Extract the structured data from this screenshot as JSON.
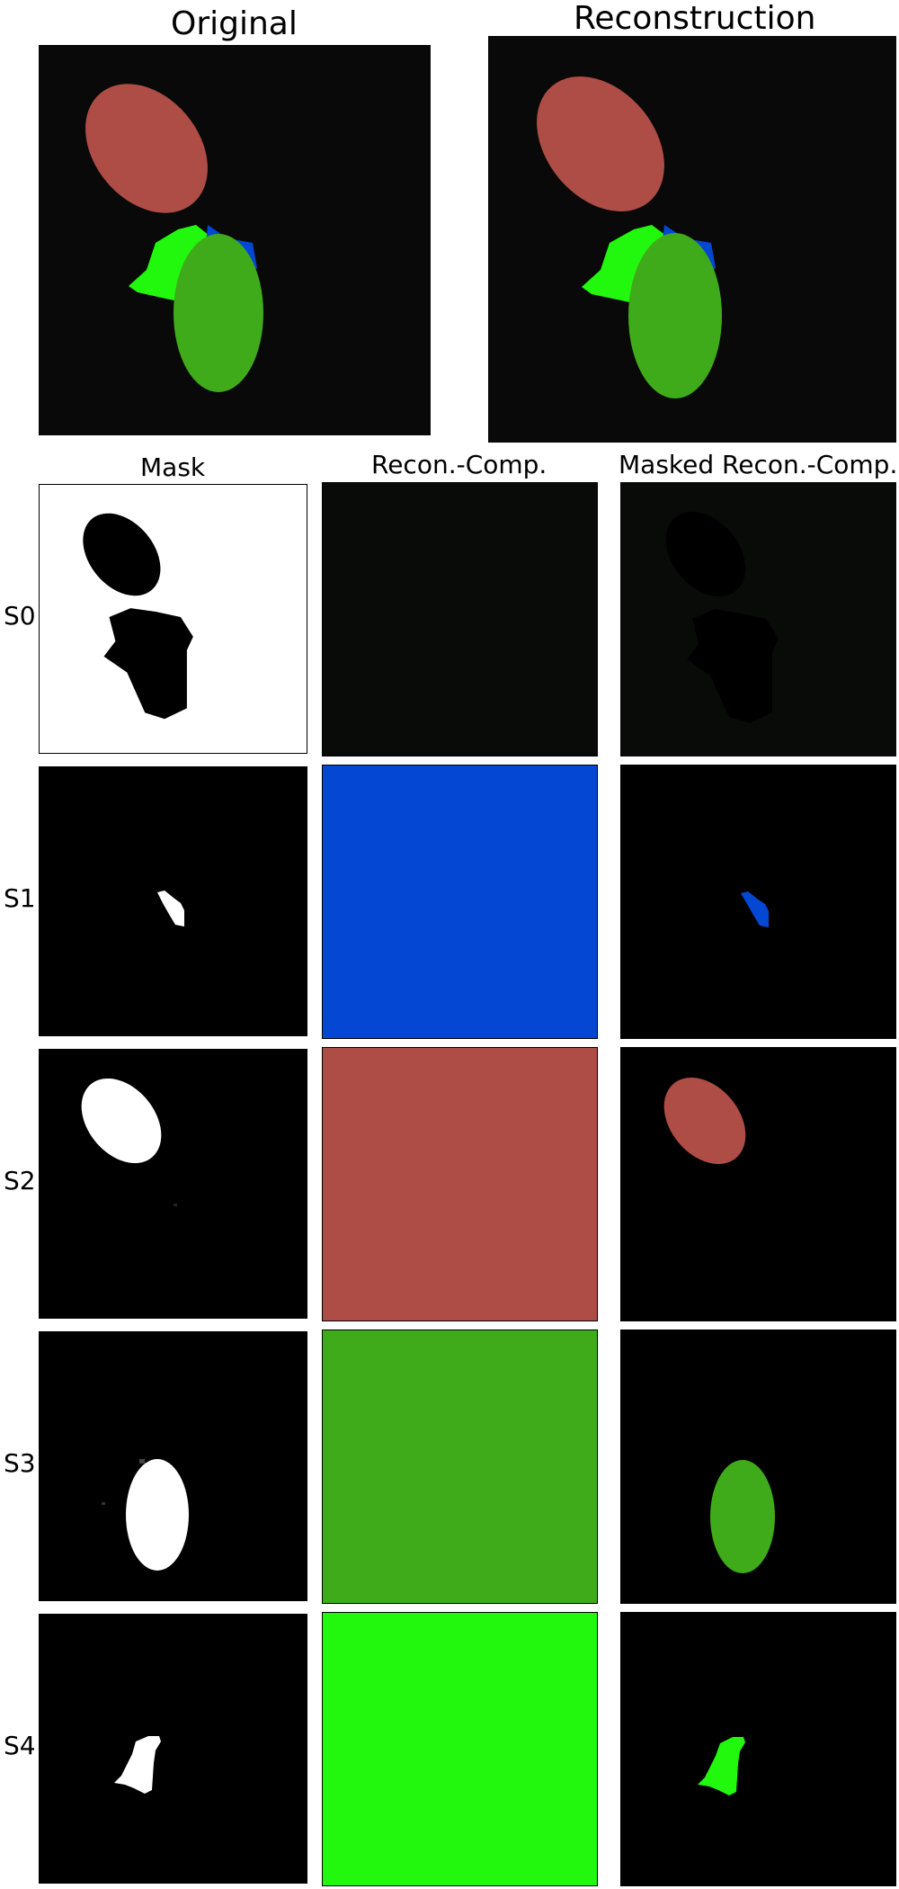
{
  "titles": {
    "original": "Original",
    "reconstruction": "Reconstruction"
  },
  "column_headers": {
    "mask": "Mask",
    "recon_comp": "Recon.-Comp.",
    "masked_recon_comp": "Masked Recon.-Comp."
  },
  "rows": [
    {
      "label": "S0",
      "component_color": "#090b09"
    },
    {
      "label": "S1",
      "component_color": "#0447d3"
    },
    {
      "label": "S2",
      "component_color": "#ae4c46"
    },
    {
      "label": "S3",
      "component_color": "#40ab1a"
    },
    {
      "label": "S4",
      "component_color": "#22f80d"
    }
  ],
  "colors": {
    "background": "#080908",
    "red_object": "#ae4c46",
    "dark_green_object": "#40ab1a",
    "bright_green_object": "#22f80d",
    "blue_object": "#0447d3",
    "mask_white": "#ffffff",
    "mask_black": "#000000"
  }
}
